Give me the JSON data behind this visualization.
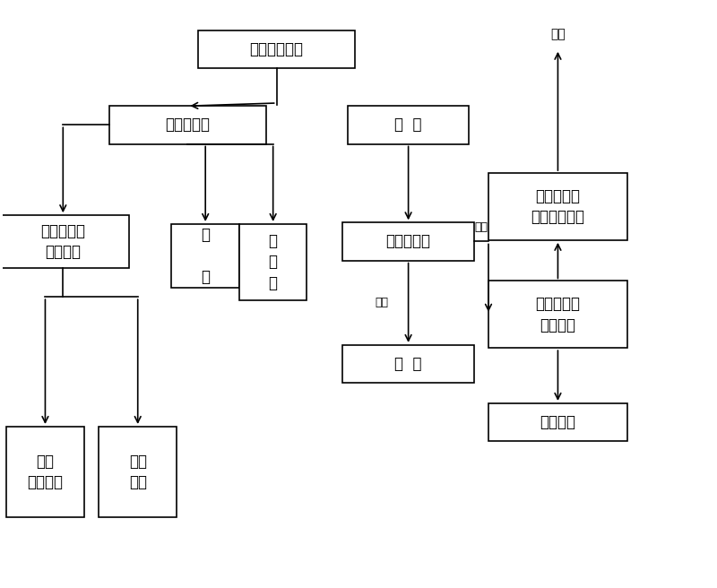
{
  "bg_color": "#ffffff",
  "boxes": {
    "废印刷电路板": [
      0.385,
      0.92,
      0.22,
      0.065
    ],
    "熔融硝酸盐": [
      0.26,
      0.79,
      0.22,
      0.065
    ],
    "水  气": [
      0.57,
      0.79,
      0.17,
      0.065
    ],
    "玻璃纤维及\n金属混合": [
      0.085,
      0.59,
      0.185,
      0.09
    ],
    "碳\n\n渣": [
      0.285,
      0.565,
      0.095,
      0.11
    ],
    "卤\n化\n盐": [
      0.38,
      0.555,
      0.095,
      0.13
    ],
    "高浓度废气": [
      0.57,
      0.59,
      0.185,
      0.065
    ],
    "焦  油": [
      0.57,
      0.38,
      0.185,
      0.065
    ],
    "金属\n（铜箔）": [
      0.06,
      0.195,
      0.11,
      0.155
    ],
    "玻璃\n纤维": [
      0.19,
      0.195,
      0.11,
      0.155
    ],
    "氮氧气体及\n有机气体处理": [
      0.78,
      0.65,
      0.195,
      0.115
    ],
    "氮氧气体及\n有机气体": [
      0.78,
      0.465,
      0.195,
      0.115
    ],
    "液化燃气": [
      0.78,
      0.28,
      0.195,
      0.065
    ]
  },
  "fontsize": 12,
  "small_fontsize": 10,
  "label_fontsize": 9
}
